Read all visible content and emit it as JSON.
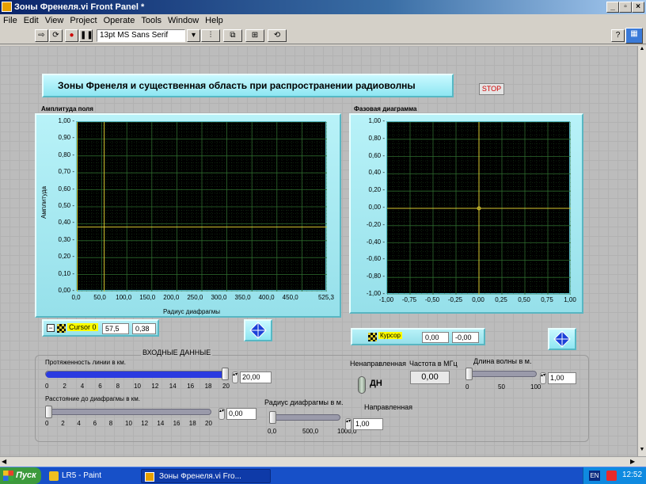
{
  "window": {
    "title": "Зоны Френеля.vi Front Panel *",
    "controls": [
      "_",
      "&#9643;",
      "x"
    ]
  },
  "menu": [
    "File",
    "Edit",
    "View",
    "Project",
    "Operate",
    "Tools",
    "Window",
    "Help"
  ],
  "toolbar": {
    "font": "13pt MS Sans Serif"
  },
  "panel": {
    "heading": "Зоны Френеля и существенная область при распространении радиоволны",
    "stop_label": "STOP"
  },
  "amp_graph": {
    "label": "Амплитуда поля",
    "ylabel": "Амплитуда",
    "xlabel": "Радиус диафрагмы",
    "yticks": [
      "1,00",
      "0,90",
      "0,80",
      "0,70",
      "0,60",
      "0,50",
      "0,40",
      "0,30",
      "0,20",
      "0,10",
      "0,00"
    ],
    "xticks": [
      "0,0",
      "50,0",
      "100,0",
      "150,0",
      "200,0",
      "250,0",
      "300,0",
      "350,0",
      "400,0",
      "450,0",
      "525,3"
    ]
  },
  "phase_graph": {
    "label": "Фазовая диаграмма",
    "yticks": [
      "1,00",
      "0,80",
      "0,60",
      "0,40",
      "0,20",
      "0,00",
      "-0,20",
      "-0,40",
      "-0,60",
      "-0,80",
      "-1,00"
    ],
    "xticks": [
      "-1,00",
      "-0,75",
      "-0,50",
      "-0,25",
      "0,00",
      "0,25",
      "0,50",
      "0,75",
      "1,00"
    ]
  },
  "cursor_amp": {
    "name": "Cursor 0",
    "x": "57,5",
    "y": "0,38"
  },
  "cursor_phase": {
    "name": "Курсор",
    "x": "0,00",
    "y": "-0,00"
  },
  "inputs": {
    "group_title": "ВХОДНЫЕ ДАННЫЕ",
    "line_length_label": "Протяженность линии в км.",
    "line_length_value": "20,00",
    "line_length_fraction": 1.0,
    "line_scale": [
      "0",
      "2",
      "4",
      "6",
      "8",
      "10",
      "12",
      "14",
      "16",
      "18",
      "20"
    ],
    "distance_label": "Расстояние до диафрагмы в км.",
    "distance_value": "0,00",
    "distance_fraction": 0.0,
    "distance_scale": [
      "0",
      "2",
      "4",
      "6",
      "8",
      "10",
      "12",
      "14",
      "16",
      "18",
      "20"
    ],
    "radius_label": "Радиус диафрагмы в м.",
    "radius_value": "1,00",
    "radius_fraction": 0.0,
    "radius_scale": [
      "0,0",
      "500,0",
      "1000,0"
    ],
    "undirected_label": "Ненаправленная",
    "directed_label": "Направленная",
    "toggle_text": "ДН",
    "freq_label": "Частота в МГц",
    "freq_value": "0,00",
    "wavelength_label": "Длина волны в м.",
    "wavelength_value": "1,00",
    "wavelength_fraction": 0.0,
    "wavelength_scale": [
      "0",
      "50",
      "100"
    ]
  },
  "taskbar": {
    "start": "Пуск",
    "items": [
      "LR5 - Paint",
      "Зоны Френеля.vi Fro..."
    ],
    "lang": "EN",
    "clock": "12:52"
  },
  "colors": {
    "plot_bg": "#000000",
    "grid": "#2d6a2d",
    "cursor": "#d8c830",
    "frame": "#a6eaf2",
    "slider_fill": "#2a3ae0"
  }
}
